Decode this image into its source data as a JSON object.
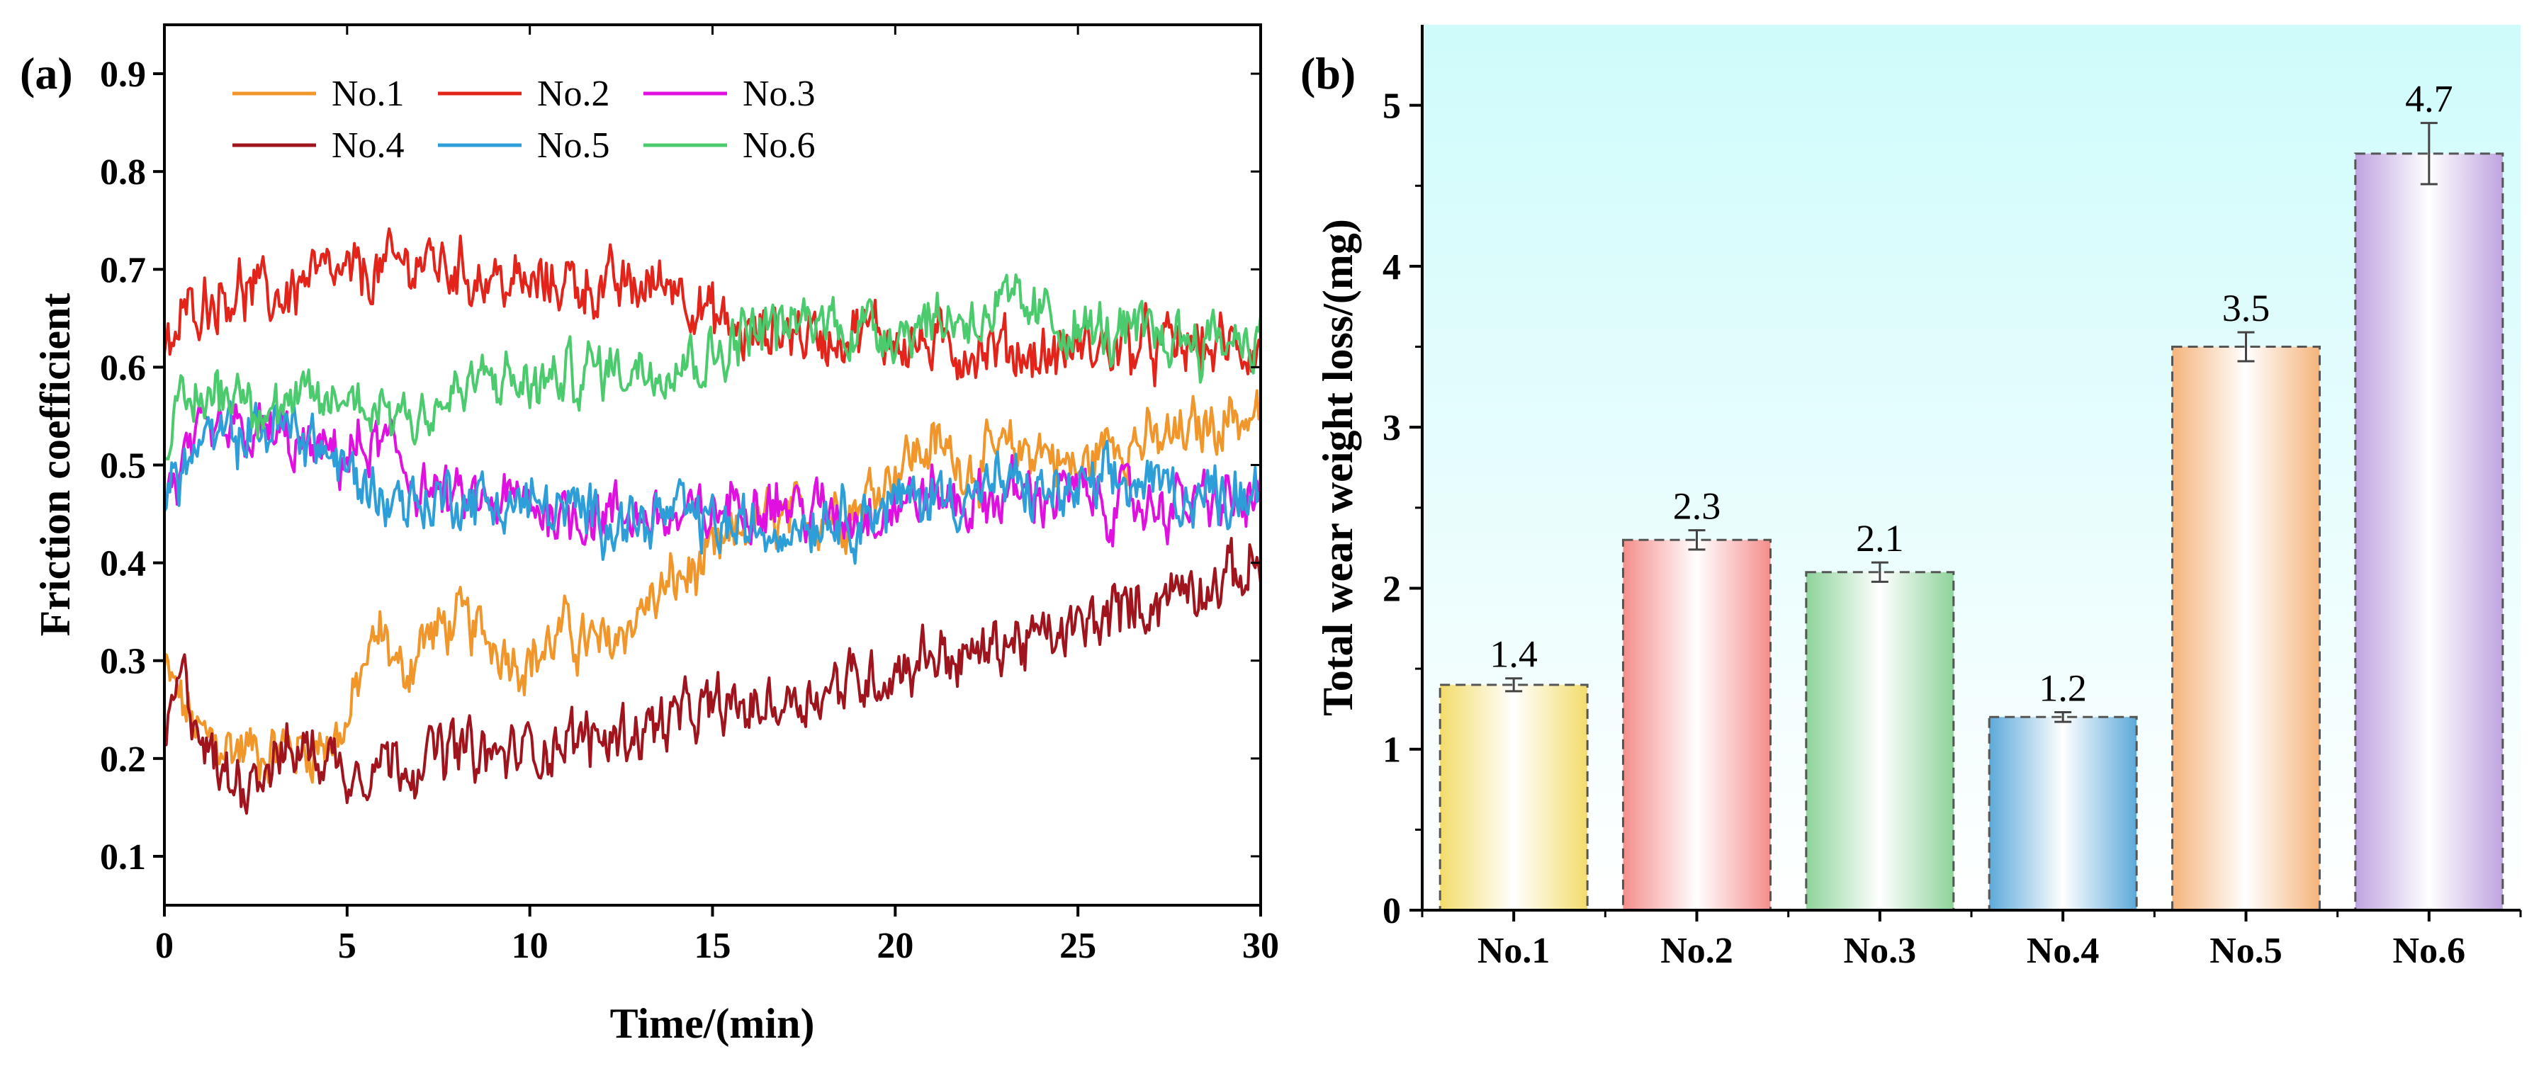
{
  "chart_data": [
    {
      "panel_label": "(a)",
      "type": "line",
      "title": "",
      "xlabel": "Time/(min)",
      "ylabel": "Friction coefficient",
      "xlim": [
        0,
        30
      ],
      "ylim": [
        0.05,
        0.95
      ],
      "xticks": [
        "0",
        "5",
        "10",
        "15",
        "20",
        "25",
        "30"
      ],
      "yticks": [
        "0.1",
        "0.2",
        "0.3",
        "0.4",
        "0.5",
        "0.6",
        "0.7",
        "0.8",
        "0.9"
      ],
      "legend_position": "top-left",
      "series": [
        {
          "name": "No.1",
          "color": "#F0962A",
          "x": [
            0,
            1,
            2,
            3,
            4,
            5,
            5.5,
            6,
            6.5,
            7,
            8,
            9,
            10,
            11,
            12,
            13,
            14,
            15,
            16,
            17,
            18,
            19,
            20,
            21,
            22,
            23,
            24,
            25,
            26,
            27,
            28,
            29,
            30
          ],
          "y": [
            0.29,
            0.22,
            0.21,
            0.21,
            0.21,
            0.23,
            0.3,
            0.33,
            0.28,
            0.32,
            0.34,
            0.32,
            0.3,
            0.33,
            0.31,
            0.35,
            0.38,
            0.4,
            0.44,
            0.44,
            0.45,
            0.46,
            0.5,
            0.52,
            0.5,
            0.51,
            0.52,
            0.49,
            0.53,
            0.52,
            0.53,
            0.55,
            0.55
          ]
        },
        {
          "name": "No.2",
          "color": "#E3241B",
          "x": [
            0,
            0.5,
            1,
            2,
            3,
            4,
            5,
            6,
            7,
            8,
            9,
            10,
            11,
            12,
            13,
            14,
            15,
            16,
            17,
            18,
            19,
            20,
            21,
            22,
            23,
            24,
            25,
            26,
            27,
            28,
            29,
            30
          ],
          "y": [
            0.6,
            0.65,
            0.67,
            0.68,
            0.67,
            0.69,
            0.69,
            0.7,
            0.71,
            0.7,
            0.69,
            0.68,
            0.69,
            0.68,
            0.68,
            0.69,
            0.65,
            0.63,
            0.64,
            0.63,
            0.64,
            0.63,
            0.62,
            0.62,
            0.62,
            0.61,
            0.62,
            0.62,
            0.62,
            0.62,
            0.62,
            0.62
          ]
        },
        {
          "name": "No.3",
          "color": "#E010E0",
          "x": [
            0,
            1,
            2,
            3,
            4,
            5,
            6,
            7,
            8,
            9,
            10,
            11,
            12,
            13,
            14,
            15,
            16,
            17,
            18,
            19,
            20,
            21,
            22,
            23,
            24,
            25,
            26,
            27,
            28,
            29,
            30
          ],
          "y": [
            0.47,
            0.52,
            0.53,
            0.53,
            0.51,
            0.51,
            0.52,
            0.48,
            0.46,
            0.46,
            0.46,
            0.45,
            0.45,
            0.45,
            0.44,
            0.45,
            0.47,
            0.46,
            0.45,
            0.45,
            0.46,
            0.47,
            0.46,
            0.47,
            0.47,
            0.47,
            0.46,
            0.46,
            0.46,
            0.46,
            0.46
          ]
        },
        {
          "name": "No.4",
          "color": "#A0141E",
          "x": [
            0,
            0.5,
            1,
            1.5,
            2,
            3,
            4,
            5,
            6,
            7,
            8,
            9,
            10,
            11,
            12,
            13,
            14,
            15,
            16,
            17,
            18,
            19,
            20,
            21,
            22,
            23,
            24,
            25,
            26,
            27,
            28,
            29,
            30
          ],
          "y": [
            0.22,
            0.28,
            0.23,
            0.18,
            0.18,
            0.2,
            0.21,
            0.19,
            0.2,
            0.2,
            0.21,
            0.2,
            0.21,
            0.22,
            0.22,
            0.23,
            0.24,
            0.25,
            0.25,
            0.26,
            0.27,
            0.28,
            0.29,
            0.31,
            0.3,
            0.32,
            0.32,
            0.33,
            0.35,
            0.36,
            0.38,
            0.38,
            0.4
          ]
        },
        {
          "name": "No.5",
          "color": "#2E9ED8",
          "x": [
            0,
            1,
            2,
            3,
            4,
            5,
            6,
            7,
            8,
            9,
            10,
            11,
            12,
            13,
            14,
            15,
            16,
            17,
            18,
            19,
            20,
            21,
            22,
            23,
            24,
            25,
            26,
            27,
            28,
            29,
            30
          ],
          "y": [
            0.47,
            0.52,
            0.53,
            0.54,
            0.53,
            0.49,
            0.47,
            0.46,
            0.47,
            0.46,
            0.46,
            0.45,
            0.45,
            0.44,
            0.45,
            0.44,
            0.43,
            0.44,
            0.45,
            0.45,
            0.46,
            0.47,
            0.47,
            0.48,
            0.47,
            0.47,
            0.48,
            0.48,
            0.47,
            0.47,
            0.48
          ]
        },
        {
          "name": "No.6",
          "color": "#4CCB6E",
          "x": [
            0,
            1,
            2,
            3,
            4,
            5,
            6,
            7,
            8,
            9,
            10,
            11,
            12,
            13,
            14,
            15,
            16,
            17,
            18,
            19,
            20,
            21,
            22,
            23,
            24,
            25,
            26,
            27,
            28,
            29,
            30
          ],
          "y": [
            0.53,
            0.57,
            0.58,
            0.56,
            0.56,
            0.57,
            0.56,
            0.55,
            0.57,
            0.59,
            0.58,
            0.59,
            0.6,
            0.6,
            0.61,
            0.61,
            0.64,
            0.64,
            0.65,
            0.64,
            0.64,
            0.65,
            0.65,
            0.66,
            0.65,
            0.64,
            0.63,
            0.63,
            0.63,
            0.63,
            0.63
          ]
        }
      ]
    },
    {
      "panel_label": "(b)",
      "type": "bar",
      "title": "",
      "xlabel": "",
      "ylabel": "Total wear weight loss/(mg)",
      "ylim": [
        0,
        5.5
      ],
      "yticks": [
        "0",
        "1",
        "2",
        "3",
        "4",
        "5"
      ],
      "categories": [
        "No.1",
        "No.2",
        "No.3",
        "No.4",
        "No.5",
        "No.6"
      ],
      "values": [
        1.4,
        2.3,
        2.1,
        1.2,
        3.5,
        4.7
      ],
      "value_labels": [
        "1.4",
        "2.3",
        "2.1",
        "1.2",
        "3.5",
        "4.7"
      ],
      "errors": [
        0.04,
        0.06,
        0.06,
        0.03,
        0.09,
        0.19
      ],
      "bar_colors": [
        "#F3DC6B",
        "#F48E8C",
        "#8ED39A",
        "#5DA9D9",
        "#F5B47C",
        "#BFA4E0"
      ],
      "background_top": "#CFFBFB",
      "background_bottom": "#FFFFFF"
    }
  ]
}
